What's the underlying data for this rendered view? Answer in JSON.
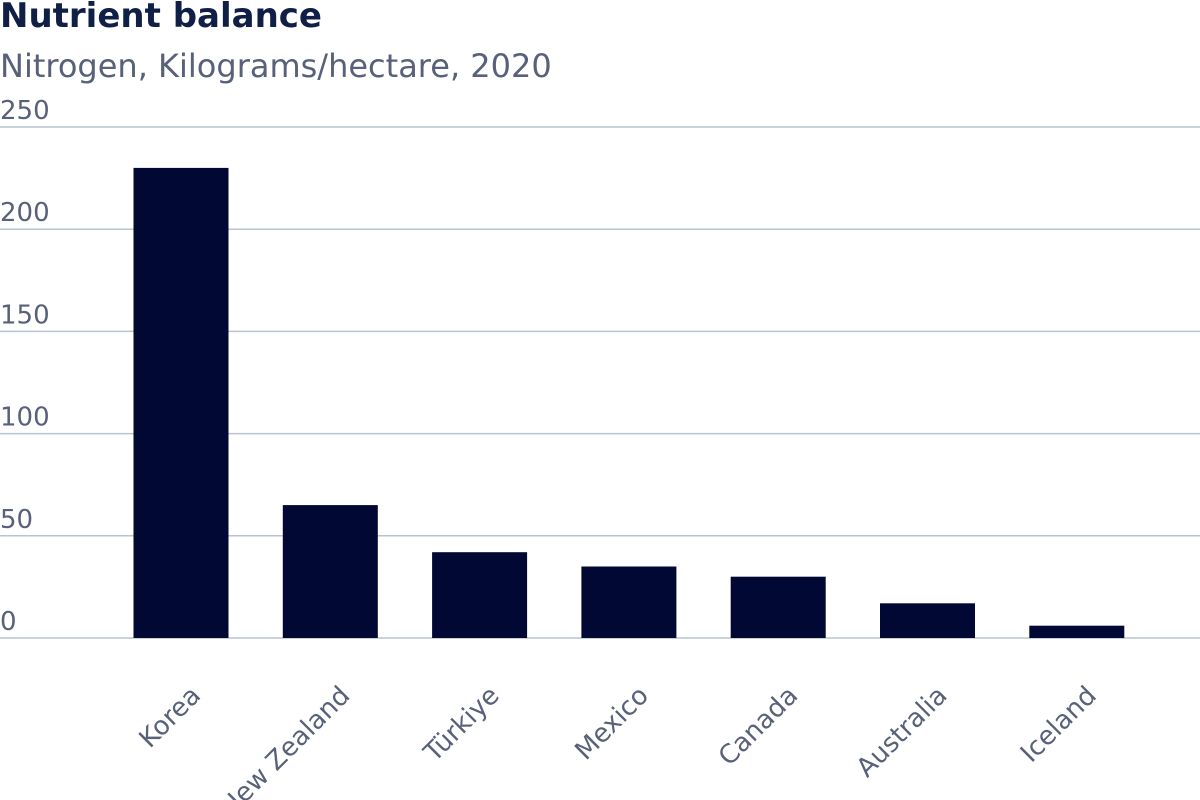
{
  "chart_data": {
    "type": "bar",
    "title": "Nutrient balance",
    "subtitle": "Nitrogen, Kilograms/hectare, 2020",
    "xlabel": "",
    "ylabel": "",
    "categories": [
      "Korea",
      "New Zealand",
      "Türkiye",
      "Mexico",
      "Canada",
      "Australia",
      "Iceland"
    ],
    "values": [
      230,
      65,
      42,
      35,
      30,
      17,
      6
    ],
    "ylim": [
      0,
      250
    ],
    "yticks": [
      0,
      50,
      100,
      150,
      200,
      250
    ],
    "ytick_labels": [
      "0",
      "50",
      "100",
      "150",
      "200",
      "250"
    ],
    "grid": true,
    "legend": "none",
    "colors": {
      "bar": "#000833",
      "grid": "#b8c4d0",
      "axis_text": "#586179",
      "title": "#0f1f45"
    }
  }
}
